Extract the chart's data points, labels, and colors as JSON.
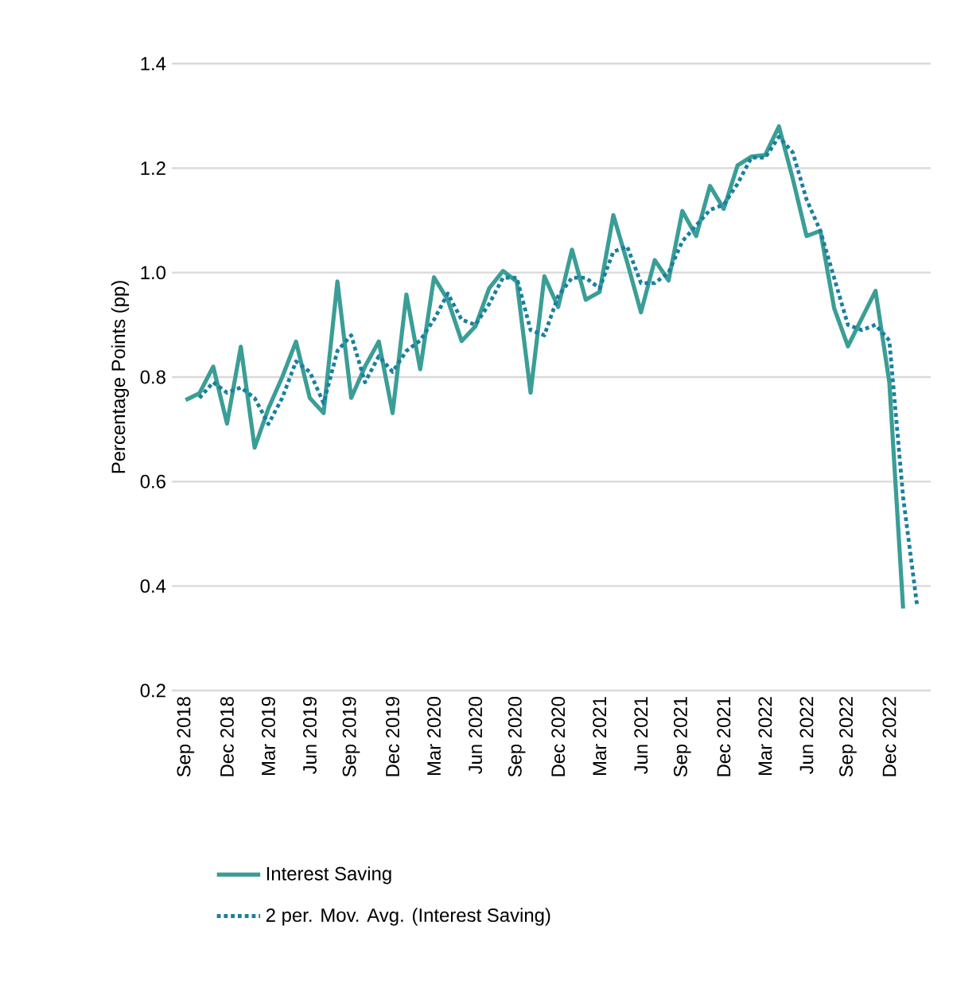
{
  "chart_data": {
    "type": "line",
    "ylabel": "Percentage Points (pp)",
    "categories": [
      "Sep 2018",
      null,
      null,
      "Dec 2018",
      null,
      null,
      "Mar 2019",
      null,
      null,
      "Jun 2019",
      null,
      null,
      "Sep 2019",
      null,
      null,
      "Dec 2019",
      null,
      null,
      "Mar 2020",
      null,
      null,
      "Jun 2020",
      null,
      null,
      "Sep 2020",
      null,
      null,
      "Dec 2020",
      null,
      null,
      "Mar 2021",
      null,
      null,
      "Jun 2021",
      null,
      null,
      "Sep 2021",
      null,
      null,
      "Dec 2021",
      null,
      null,
      "Mar 2022",
      null,
      null,
      "Jun 2022",
      null,
      null,
      "Sep 2022",
      null,
      null,
      "Dec 2022",
      null,
      null
    ],
    "series": [
      {
        "name": "Interest Saving",
        "color": "#3a9e96",
        "line_style": "solid",
        "values": [
          0.756,
          0.769,
          0.82,
          0.711,
          0.858,
          0.665,
          0.74,
          0.8,
          0.868,
          0.76,
          0.731,
          0.983,
          0.76,
          0.82,
          0.868,
          0.731,
          0.958,
          0.815,
          0.991,
          0.948,
          0.869,
          0.897,
          0.97,
          1.003,
          0.983,
          0.77,
          0.993,
          0.934,
          1.044,
          0.948,
          0.963,
          1.11,
          1.02,
          0.924,
          1.024,
          0.985,
          1.118,
          1.07,
          1.166,
          1.122,
          1.205,
          1.222,
          1.225,
          1.28,
          1.18,
          1.07,
          1.08,
          0.932,
          0.859,
          0.912,
          0.965,
          0.79,
          0.357,
          null
        ]
      },
      {
        "name": "2 per. Mov. Avg. (Interest Saving)",
        "color": "#1a7fa0",
        "line_style": "dotted",
        "values": [
          null,
          0.76,
          0.79,
          0.77,
          0.78,
          0.76,
          0.71,
          0.76,
          0.83,
          0.81,
          0.75,
          0.85,
          0.88,
          0.79,
          0.84,
          0.81,
          0.85,
          0.87,
          0.91,
          0.96,
          0.91,
          0.9,
          0.94,
          0.99,
          0.99,
          0.89,
          0.88,
          0.955,
          0.99,
          0.99,
          0.97,
          1.04,
          1.05,
          0.98,
          0.98,
          1.0,
          1.06,
          1.09,
          1.12,
          1.13,
          1.17,
          1.22,
          1.22,
          1.26,
          1.23,
          1.14,
          1.08,
          0.99,
          0.9,
          0.89,
          0.9,
          0.87,
          0.57,
          0.365
        ]
      }
    ],
    "ylim": [
      0.2,
      1.4
    ],
    "yticks": [
      0.2,
      0.4,
      0.6,
      0.8,
      {
        "value": 1,
        "label": "1.0"
      },
      1.2,
      1.4
    ],
    "grid": "y",
    "legend": "bottom",
    "marker": "none"
  }
}
